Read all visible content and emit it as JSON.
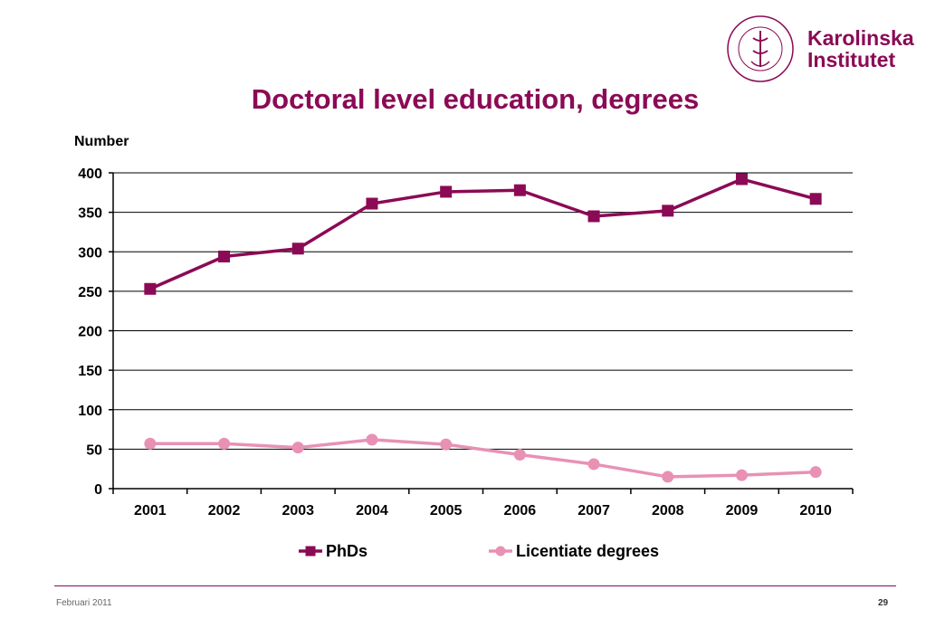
{
  "slide": {
    "title": "Doctoral level education, degrees",
    "footer_date": "Februari 2011",
    "page_number": "29"
  },
  "logo": {
    "line1": "Karolinska",
    "line2": "Institutet",
    "seal_text": "KAROLINSKA INSTITUTET ANNO 1810",
    "color": "#8b0a55"
  },
  "chart_data": {
    "type": "line",
    "title": "Doctoral level education, degrees",
    "xlabel": "",
    "ylabel": "Number",
    "categories": [
      "2001",
      "2002",
      "2003",
      "2004",
      "2005",
      "2006",
      "2007",
      "2008",
      "2009",
      "2010"
    ],
    "ylim": [
      0,
      400
    ],
    "yticks": [
      0,
      50,
      100,
      150,
      200,
      250,
      300,
      350,
      400
    ],
    "grid": true,
    "legend_position": "bottom",
    "series": [
      {
        "name": "PhDs",
        "color": "#8b0a55",
        "marker": "square",
        "values": [
          253,
          294,
          304,
          361,
          376,
          378,
          345,
          352,
          392,
          367
        ]
      },
      {
        "name": "Licentiate degrees",
        "color": "#e891b4",
        "marker": "circle",
        "values": [
          57,
          57,
          52,
          62,
          56,
          43,
          31,
          15,
          17,
          21
        ]
      }
    ]
  }
}
